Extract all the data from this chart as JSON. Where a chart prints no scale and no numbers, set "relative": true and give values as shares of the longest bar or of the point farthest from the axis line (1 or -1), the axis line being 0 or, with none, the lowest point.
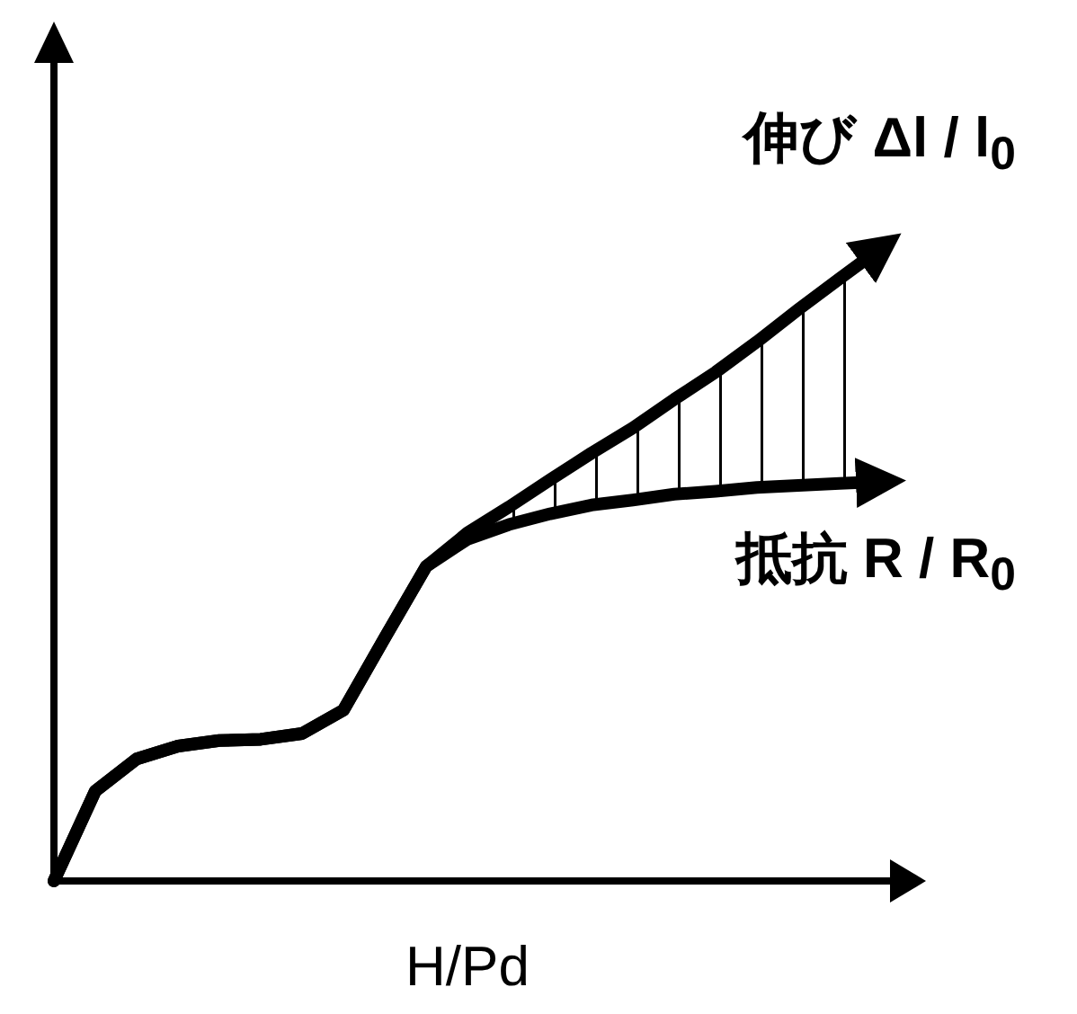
{
  "chart_data": {
    "type": "line",
    "relative": true,
    "xlabel": "H/Pd",
    "categories": [
      null,
      null,
      null,
      null,
      null,
      null,
      null,
      null,
      null,
      null,
      null,
      null,
      null,
      null,
      null,
      null,
      null,
      null,
      null,
      null,
      null
    ],
    "series": [
      {
        "name": "伸び Δl / l$_{0}$",
        "color": "#000000",
        "values": [
          0,
          0.142,
          0.193,
          0.213,
          0.222,
          0.224,
          0.233,
          0.27,
          0.384,
          0.497,
          0.55,
          0.591,
          0.634,
          0.676,
          0.716,
          0.761,
          0.804,
          0.852,
          0.903,
          0.952,
          1
        ],
        "lower": [
          null,
          null,
          null,
          null,
          null,
          null,
          null,
          null,
          null,
          null,
          0.54,
          0.563,
          0.58,
          0.594,
          0.602,
          0.611,
          0.616,
          0.622,
          0.625,
          0.628,
          0.631
        ],
        "upper": [
          null,
          null,
          null,
          null,
          null,
          null,
          null,
          null,
          null,
          null,
          0.55,
          0.591,
          0.634,
          0.676,
          0.716,
          0.761,
          0.804,
          0.852,
          0.903,
          0.952,
          1
        ]
      },
      {
        "name": "抵抗 R / R$_{0}$",
        "color": "#000000",
        "values": [
          0,
          0.142,
          0.193,
          0.213,
          0.222,
          0.224,
          0.233,
          0.27,
          0.384,
          0.497,
          0.54,
          0.563,
          0.58,
          0.594,
          0.602,
          0.611,
          0.616,
          0.622,
          0.625,
          0.628,
          0.631
        ]
      }
    ]
  }
}
